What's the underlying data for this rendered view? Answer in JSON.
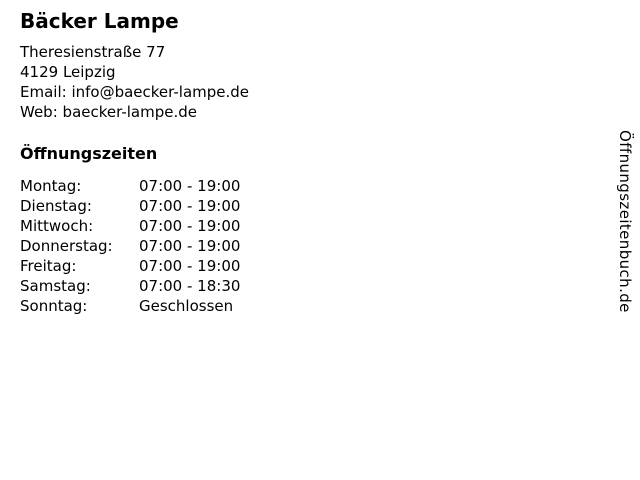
{
  "business": {
    "name": "Bäcker Lampe",
    "street": "Theresienstraße 77",
    "city": "4129 Leipzig",
    "email_label": "Email:",
    "email": "info@baecker-lampe.de",
    "web_label": "Web:",
    "web": "baecker-lampe.de"
  },
  "hours": {
    "heading": "Öffnungszeiten",
    "rows": [
      {
        "day": "Montag:",
        "time": "07:00 - 19:00"
      },
      {
        "day": "Dienstag:",
        "time": "07:00 - 19:00"
      },
      {
        "day": "Mittwoch:",
        "time": "07:00 - 19:00"
      },
      {
        "day": "Donnerstag:",
        "time": "07:00 - 19:00"
      },
      {
        "day": "Freitag:",
        "time": "07:00 - 19:00"
      },
      {
        "day": "Samstag:",
        "time": "07:00 - 18:30"
      },
      {
        "day": "Sonntag:",
        "time": "Geschlossen"
      }
    ]
  },
  "watermark": {
    "text": "Öffnungszeitenbuch.de"
  },
  "colors": {
    "background": "#ffffff",
    "text": "#000000"
  }
}
